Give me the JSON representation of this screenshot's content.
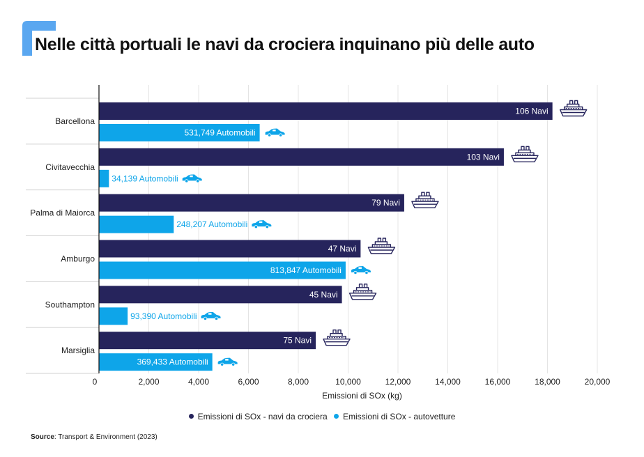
{
  "title": "Nelle città portuali le navi da crociera inquinano più delle auto",
  "colors": {
    "accent": "#5aa7f0",
    "ships": "#26245c",
    "cars": "#0ea5e9",
    "text": "#111111"
  },
  "legend": {
    "ships": "Emissioni di SOx - navi da crociera",
    "cars": "Emissioni di SOx - autovetture"
  },
  "source": {
    "label": "Source",
    "text": ": Transport & Environment (2023)"
  },
  "chart_data": {
    "type": "bar",
    "orientation": "horizontal",
    "xlabel": "Emissioni di SOx (kg)",
    "xlim": [
      0,
      20000
    ],
    "xticks": [
      "0",
      "2,000",
      "4,000",
      "6,000",
      "8,000",
      "10,000",
      "12,000",
      "14,000",
      "16,000",
      "18,000",
      "20,000"
    ],
    "grid": true,
    "categories": [
      "Barcellona",
      "Civitavecchia",
      "Palma di Maiorca",
      "Amburgo",
      "Southampton",
      "Marsiglia"
    ],
    "series": [
      {
        "name": "Emissioni di SOx - navi da crociera",
        "icon": "cruise-ship-icon",
        "values": [
          18200,
          16250,
          12250,
          10500,
          9750,
          8700
        ],
        "labels": [
          "106 Navi",
          "103 Navi",
          "79 Navi",
          "47 Navi",
          "45 Navi",
          "75 Navi"
        ]
      },
      {
        "name": "Emissioni di SOx - autovetture",
        "icon": "car-icon",
        "values": [
          6450,
          400,
          3000,
          9900,
          1150,
          4550
        ],
        "labels": [
          "531,749 Automobili",
          "34,139 Automobili",
          "248,207 Automobili",
          "813,847 Automobili",
          "93,390 Automobili",
          "369,433 Automobili"
        ]
      }
    ]
  }
}
